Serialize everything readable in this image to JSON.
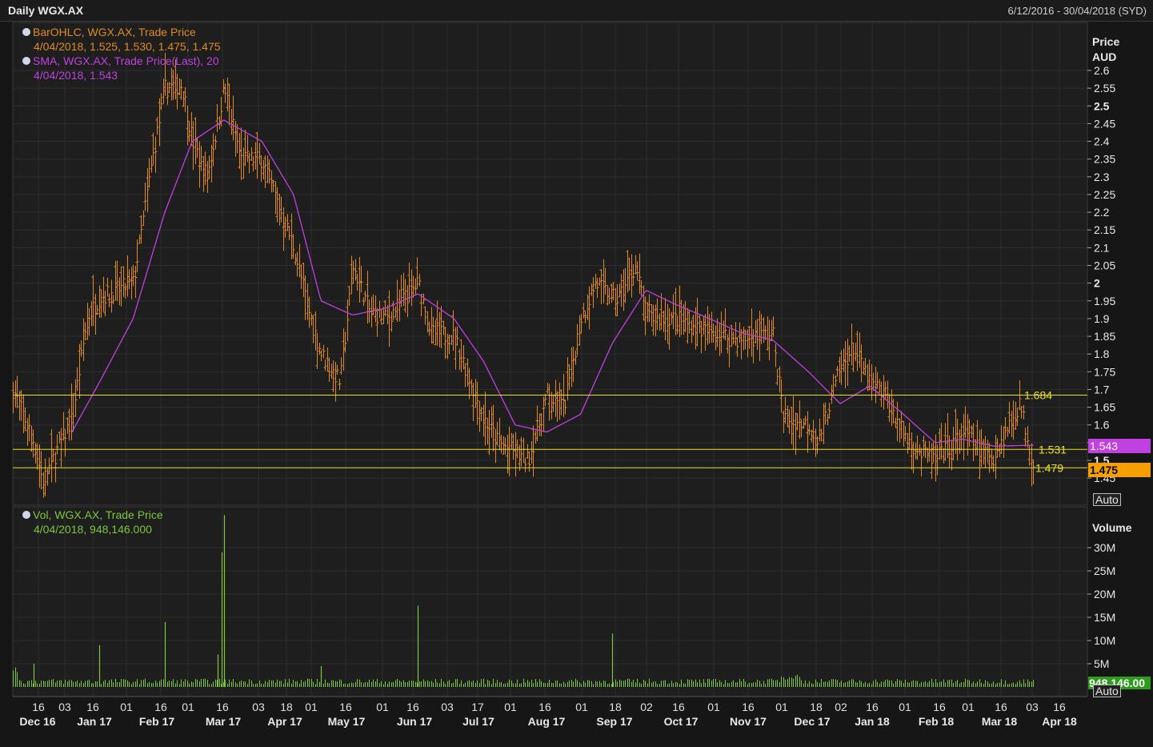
{
  "header": {
    "title": "Daily WGX.AX",
    "date_range": "6/12/2016 - 30/04/2018 (SYD)"
  },
  "legend": {
    "ohlc_label": "BarOHLC, WGX.AX, Trade Price",
    "ohlc_values": "4/04/2018, 1.525, 1.530, 1.475, 1.475",
    "sma_label": "SMA, WGX.AX, Trade Price(Last),  20",
    "sma_values": "4/04/2018, 1.543",
    "vol_label": "Vol, WGX.AX, Trade Price",
    "vol_values": "4/04/2018, 948,146.000"
  },
  "price_axis": {
    "title_line1": "Price",
    "title_line2": "AUD",
    "ticks": [
      "2.6",
      "2.55",
      "2.5",
      "2.45",
      "2.4",
      "2.35",
      "2.3",
      "2.25",
      "2.2",
      "2.15",
      "2.1",
      "2.05",
      "2",
      "1.95",
      "1.9",
      "1.85",
      "1.8",
      "1.75",
      "1.7",
      "1.65",
      "1.6",
      "1.55",
      "1.5",
      "1.45"
    ],
    "auto_label": "Auto"
  },
  "volume_axis": {
    "title": "Volume",
    "ticks": [
      "30M",
      "25M",
      "20M",
      "15M",
      "10M",
      "5M"
    ],
    "auto_label": "Auto"
  },
  "markers": {
    "sma_last": "1.543",
    "price_last": "1.475",
    "volume_last": "948,146.00"
  },
  "hlines": [
    {
      "label": "1.684",
      "value": 1.684
    },
    {
      "label": "1.531",
      "value": 1.531
    },
    {
      "label": "1.479",
      "value": 1.479
    }
  ],
  "x_axis": {
    "day_ticks": [
      "16",
      "03",
      "16",
      "01",
      "16",
      "01",
      "16",
      "03",
      "18",
      "01",
      "16",
      "01",
      "16",
      "03",
      "17",
      "01",
      "16",
      "01",
      "18",
      "02",
      "16",
      "01",
      "16",
      "01",
      "18",
      "02",
      "16",
      "01",
      "16",
      "01",
      "16",
      "03",
      "16"
    ],
    "month_labels": [
      "Dec 16",
      "Jan 17",
      "Feb 17",
      "Mar 17",
      "Apr 17",
      "May 17",
      "Jun 17",
      "Jul 17",
      "Aug 17",
      "Sep 17",
      "Oct 17",
      "Nov 17",
      "Dec 17",
      "Jan 18",
      "Feb 18",
      "Mar 18",
      "Apr 18"
    ]
  },
  "colors": {
    "background": "#161616",
    "ohlc": "#e08a1e",
    "sma": "#c040e0",
    "volume": "#7cc63a",
    "hline": "#e8e020",
    "grid": "#2c2c2c"
  },
  "chart_data": {
    "type": "ohlc",
    "price_range": [
      1.42,
      2.64
    ],
    "volume_range_millions": [
      0,
      36
    ],
    "price_series": [
      {
        "date": "6/12/2016",
        "close": 1.7
      },
      {
        "date": "16/12/2016",
        "close": 1.55
      },
      {
        "date": "20/12/2016",
        "close": 1.44
      },
      {
        "date": "03/01/2017",
        "close": 1.62
      },
      {
        "date": "10/01/2017",
        "close": 1.9
      },
      {
        "date": "16/01/2017",
        "close": 1.96
      },
      {
        "date": "01/02/2017",
        "close": 2.0
      },
      {
        "date": "10/02/2017",
        "close": 2.35
      },
      {
        "date": "16/02/2017",
        "close": 2.55
      },
      {
        "date": "24/02/2017",
        "close": 2.56
      },
      {
        "date": "01/03/2017",
        "close": 2.4
      },
      {
        "date": "08/03/2017",
        "close": 2.3
      },
      {
        "date": "16/03/2017",
        "close": 2.55
      },
      {
        "date": "24/03/2017",
        "close": 2.35
      },
      {
        "date": "03/04/2017",
        "close": 2.35
      },
      {
        "date": "18/04/2017",
        "close": 2.1
      },
      {
        "date": "26/04/2017",
        "close": 1.9
      },
      {
        "date": "01/05/2017",
        "close": 1.8
      },
      {
        "date": "10/05/2017",
        "close": 1.72
      },
      {
        "date": "16/05/2017",
        "close": 2.05
      },
      {
        "date": "24/05/2017",
        "close": 1.92
      },
      {
        "date": "01/06/2017",
        "close": 1.9
      },
      {
        "date": "16/06/2017",
        "close": 2.0
      },
      {
        "date": "22/06/2017",
        "close": 1.86
      },
      {
        "date": "03/07/2017",
        "close": 1.85
      },
      {
        "date": "17/07/2017",
        "close": 1.62
      },
      {
        "date": "24/07/2017",
        "close": 1.55
      },
      {
        "date": "01/08/2017",
        "close": 1.52
      },
      {
        "date": "07/08/2017",
        "close": 1.5
      },
      {
        "date": "16/08/2017",
        "close": 1.68
      },
      {
        "date": "24/08/2017",
        "close": 1.65
      },
      {
        "date": "01/09/2017",
        "close": 1.9
      },
      {
        "date": "08/09/2017",
        "close": 2.0
      },
      {
        "date": "18/09/2017",
        "close": 1.95
      },
      {
        "date": "27/09/2017",
        "close": 2.05
      },
      {
        "date": "02/10/2017",
        "close": 1.9
      },
      {
        "date": "16/10/2017",
        "close": 1.9
      },
      {
        "date": "01/11/2017",
        "close": 1.86
      },
      {
        "date": "16/11/2017",
        "close": 1.84
      },
      {
        "date": "01/12/2017",
        "close": 1.86
      },
      {
        "date": "06/12/2017",
        "close": 1.62
      },
      {
        "date": "18/12/2017",
        "close": 1.6
      },
      {
        "date": "22/12/2017",
        "close": 1.55
      },
      {
        "date": "02/01/2018",
        "close": 1.76
      },
      {
        "date": "08/01/2018",
        "close": 1.82
      },
      {
        "date": "16/01/2018",
        "close": 1.72
      },
      {
        "date": "24/01/2018",
        "close": 1.68
      },
      {
        "date": "01/02/2018",
        "close": 1.57
      },
      {
        "date": "09/02/2018",
        "close": 1.52
      },
      {
        "date": "16/02/2018",
        "close": 1.5
      },
      {
        "date": "01/03/2018",
        "close": 1.58
      },
      {
        "date": "09/03/2018",
        "close": 1.53
      },
      {
        "date": "16/03/2018",
        "close": 1.51
      },
      {
        "date": "23/03/2018",
        "close": 1.6
      },
      {
        "date": "28/03/2018",
        "close": 1.66
      },
      {
        "date": "04/04/2018",
        "close": 1.475
      }
    ],
    "sma_series": [
      {
        "date": "03/01/2017",
        "value": 1.58
      },
      {
        "date": "16/01/2017",
        "value": 1.72
      },
      {
        "date": "01/02/2017",
        "value": 1.9
      },
      {
        "date": "16/02/2017",
        "value": 2.2
      },
      {
        "date": "01/03/2017",
        "value": 2.4
      },
      {
        "date": "16/03/2017",
        "value": 2.46
      },
      {
        "date": "03/04/2017",
        "value": 2.4
      },
      {
        "date": "18/04/2017",
        "value": 2.25
      },
      {
        "date": "01/05/2017",
        "value": 1.95
      },
      {
        "date": "16/05/2017",
        "value": 1.91
      },
      {
        "date": "01/06/2017",
        "value": 1.93
      },
      {
        "date": "16/06/2017",
        "value": 1.97
      },
      {
        "date": "03/07/2017",
        "value": 1.9
      },
      {
        "date": "17/07/2017",
        "value": 1.78
      },
      {
        "date": "01/08/2017",
        "value": 1.6
      },
      {
        "date": "16/08/2017",
        "value": 1.58
      },
      {
        "date": "01/09/2017",
        "value": 1.63
      },
      {
        "date": "16/09/2017",
        "value": 1.83
      },
      {
        "date": "02/10/2017",
        "value": 1.98
      },
      {
        "date": "16/10/2017",
        "value": 1.94
      },
      {
        "date": "01/11/2017",
        "value": 1.9
      },
      {
        "date": "16/11/2017",
        "value": 1.86
      },
      {
        "date": "01/12/2017",
        "value": 1.84
      },
      {
        "date": "18/12/2017",
        "value": 1.75
      },
      {
        "date": "02/01/2018",
        "value": 1.66
      },
      {
        "date": "16/01/2018",
        "value": 1.71
      },
      {
        "date": "01/02/2018",
        "value": 1.63
      },
      {
        "date": "16/02/2018",
        "value": 1.55
      },
      {
        "date": "01/03/2018",
        "value": 1.56
      },
      {
        "date": "16/03/2018",
        "value": 1.54
      },
      {
        "date": "04/04/2018",
        "value": 1.543
      }
    ],
    "volume_spikes_millions": [
      {
        "date": "16/12/2016",
        "value": 5.0
      },
      {
        "date": "16/01/2017",
        "value": 9.0
      },
      {
        "date": "16/02/2017",
        "value": 14.0
      },
      {
        "date": "13/03/2017",
        "value": 7.0
      },
      {
        "date": "15/03/2017",
        "value": 29.0
      },
      {
        "date": "16/03/2017",
        "value": 37.0
      },
      {
        "date": "01/05/2017",
        "value": 4.5
      },
      {
        "date": "16/06/2017",
        "value": 17.5
      },
      {
        "date": "16/09/2017",
        "value": 11.5
      }
    ]
  }
}
